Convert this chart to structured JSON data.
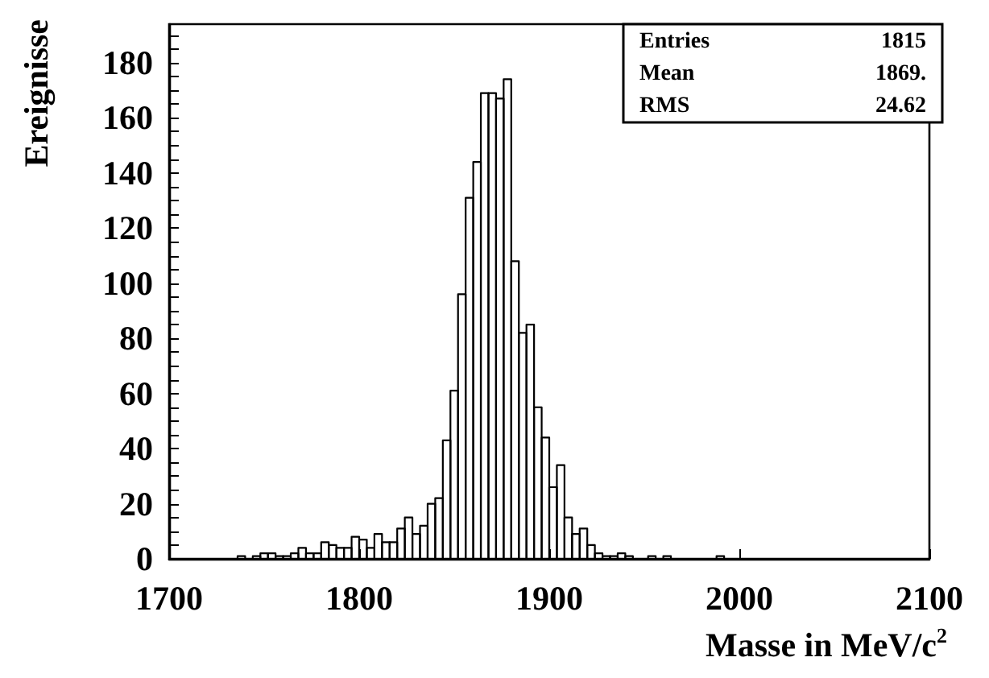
{
  "chart_data": {
    "type": "histogram",
    "xlabel": "Masse in MeV/c$^{2}$",
    "ylabel": "Ereignisse",
    "annotations": [
      "Entries",
      "1815",
      "Mean",
      "1869.",
      "RMS",
      "24.62"
    ],
    "bins": [
      1700,
      1704,
      1708,
      1712,
      1716,
      1720,
      1724,
      1728,
      1732,
      1736,
      1740,
      1744,
      1748,
      1752,
      1756,
      1760,
      1764,
      1768,
      1772,
      1776,
      1780,
      1784,
      1788,
      1792,
      1796,
      1800,
      1804,
      1808,
      1812,
      1816,
      1820,
      1824,
      1828,
      1832,
      1836,
      1840,
      1844,
      1848,
      1852,
      1856,
      1860,
      1864,
      1868,
      1872,
      1876,
      1880,
      1884,
      1888,
      1892,
      1896,
      1900,
      1904,
      1908,
      1912,
      1916,
      1920,
      1924,
      1928,
      1932,
      1936,
      1940,
      1944,
      1948,
      1952,
      1956,
      1960,
      1964,
      1968,
      1972,
      1976,
      1980,
      1984,
      1988,
      1992,
      1996,
      2000,
      2004,
      2008,
      2012,
      2016,
      2020,
      2024,
      2028,
      2032,
      2036,
      2040,
      2044,
      2048,
      2052,
      2056,
      2060,
      2064,
      2068,
      2072,
      2076,
      2080,
      2084,
      2088,
      2092,
      2096,
      2100
    ],
    "values": [
      0,
      0,
      0,
      0,
      0,
      0,
      0,
      0,
      0,
      1,
      0,
      1,
      2,
      2,
      1,
      1,
      2,
      4,
      2,
      2,
      6,
      5,
      4,
      4,
      8,
      7,
      4,
      9,
      6,
      6,
      11,
      15,
      9,
      12,
      20,
      22,
      43,
      61,
      96,
      131,
      144,
      169,
      169,
      167,
      174,
      108,
      82,
      85,
      55,
      44,
      26,
      34,
      15,
      9,
      11,
      5,
      2,
      1,
      1,
      2,
      1,
      0,
      0,
      1,
      0,
      1,
      0,
      0,
      0,
      0,
      0,
      0,
      1,
      0,
      0,
      0,
      0,
      0,
      0,
      0,
      0,
      0,
      0,
      0,
      0,
      0,
      0,
      0,
      0,
      0,
      0,
      0,
      0,
      0,
      0,
      0,
      0,
      0,
      0,
      0
    ],
    "color": "#000000",
    "xlim": [
      1700,
      2100
    ],
    "xticks": [
      1700,
      1800,
      1900,
      2000,
      2100
    ],
    "ylim": [
      0,
      194
    ],
    "yticks": [
      0,
      {
        "value": 5,
        "label": null
      },
      {
        "value": 10,
        "label": null
      },
      {
        "value": 15,
        "label": null
      },
      20,
      {
        "value": 25,
        "label": null
      },
      {
        "value": 30,
        "label": null
      },
      {
        "value": 35,
        "label": null
      },
      40,
      {
        "value": 45,
        "label": null
      },
      {
        "value": 50,
        "label": null
      },
      {
        "value": 55,
        "label": null
      },
      60,
      {
        "value": 65,
        "label": null
      },
      {
        "value": 70,
        "label": null
      },
      {
        "value": 75,
        "label": null
      },
      80,
      {
        "value": 85,
        "label": null
      },
      {
        "value": 90,
        "label": null
      },
      {
        "value": 95,
        "label": null
      },
      100,
      {
        "value": 105,
        "label": null
      },
      {
        "value": 110,
        "label": null
      },
      {
        "value": 115,
        "label": null
      },
      120,
      {
        "value": 125,
        "label": null
      },
      {
        "value": 130,
        "label": null
      },
      {
        "value": 135,
        "label": null
      },
      140,
      {
        "value": 145,
        "label": null
      },
      {
        "value": 150,
        "label": null
      },
      {
        "value": 155,
        "label": null
      },
      160,
      {
        "value": 165,
        "label": null
      },
      {
        "value": 170,
        "label": null
      },
      {
        "value": 175,
        "label": null
      },
      180,
      {
        "value": 185,
        "label": null
      },
      {
        "value": 190,
        "label": null
      }
    ],
    "grid": false
  }
}
